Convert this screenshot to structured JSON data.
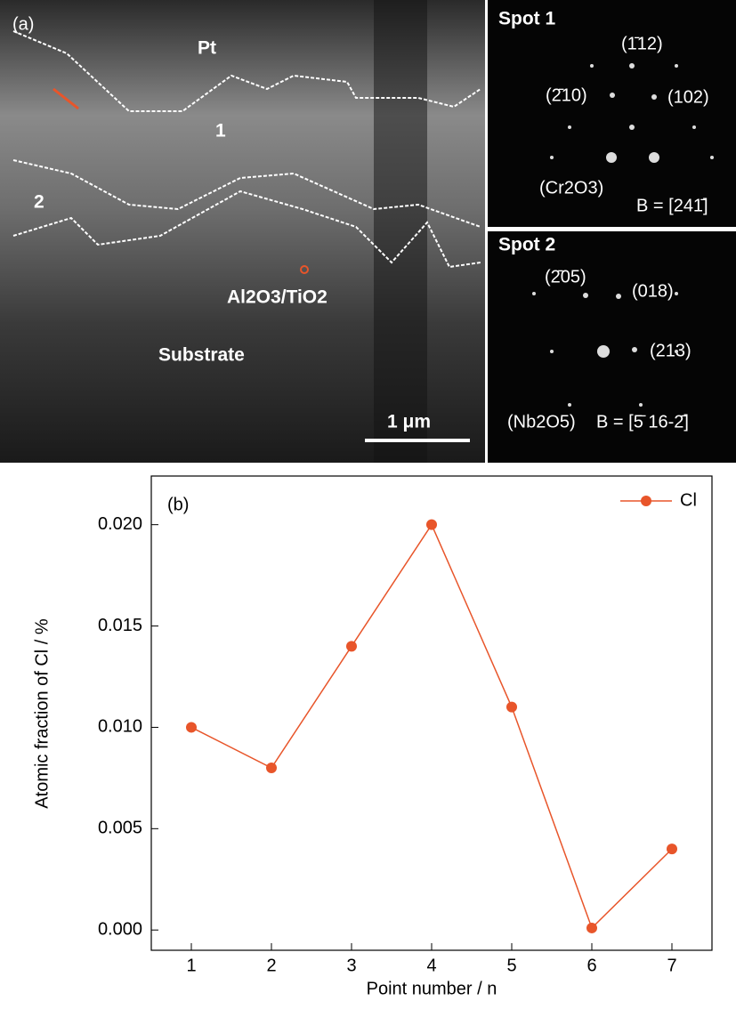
{
  "panel_a": {
    "main": {
      "label": "(a)",
      "pt": "Pt",
      "layer1": "1",
      "layer2": "2",
      "oxide": "Al2O3/TiO2",
      "substrate": "Substrate",
      "scale": "1 μm"
    },
    "spot1": {
      "title": "Spot 1",
      "spots": [
        "(1̄12)",
        "(2̄10)",
        "(102)"
      ],
      "phase": "(Cr2O3)",
      "zone": "B = [241̄]"
    },
    "spot2": {
      "title": "Spot 2",
      "spots": [
        "(2̄05)",
        "(018)",
        "(213)"
      ],
      "phase": "(Nb2O5)",
      "zone": "B = [5̄ 16-2̄]"
    }
  },
  "chart_data": {
    "type": "line",
    "annotation": "(b)",
    "x_label": "Point number / n",
    "y_label": "Atomic fraction of Cl / %",
    "x": [
      1,
      2,
      3,
      4,
      5,
      6,
      7
    ],
    "series": [
      {
        "name": "Cl",
        "color": "#e8552a",
        "values": [
          0.01,
          0.008,
          0.014,
          0.02,
          0.011,
          0.0001,
          0.004
        ]
      }
    ],
    "xlim": [
      0.5,
      7.5
    ],
    "ylim": [
      -0.001,
      0.0224
    ],
    "xticks": [
      1,
      2,
      3,
      4,
      5,
      6,
      7
    ],
    "yticks": [
      {
        "value": 0,
        "label": "0.000"
      },
      {
        "value": 0.005,
        "label": "0.005"
      },
      {
        "value": 0.01,
        "label": "0.010"
      },
      {
        "value": 0.015,
        "label": "0.015"
      },
      {
        "value": 0.02,
        "label": "0.020"
      }
    ],
    "legend": "upper right"
  }
}
